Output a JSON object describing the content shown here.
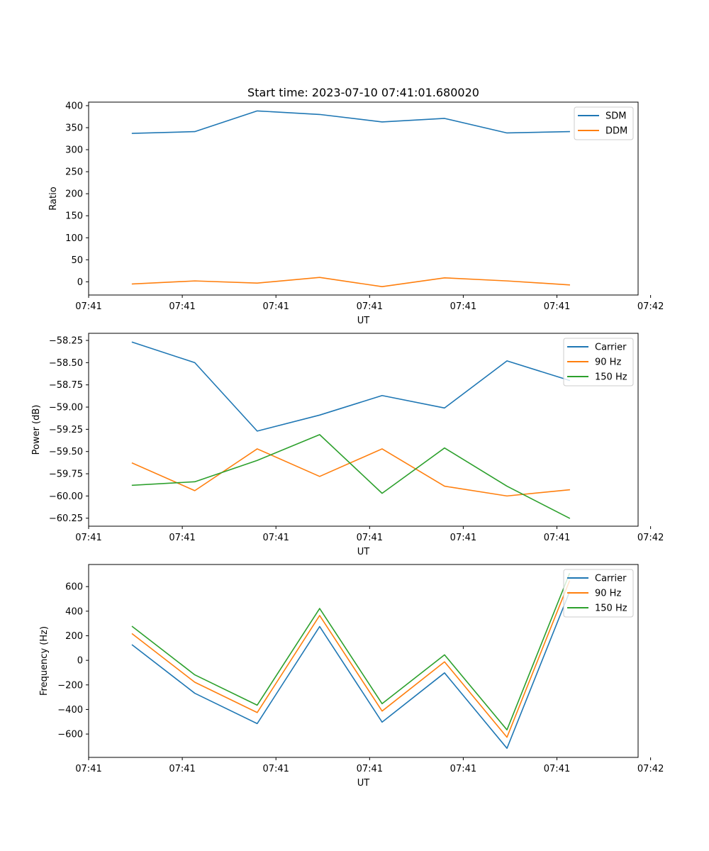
{
  "chart_data": [
    {
      "type": "line",
      "title": "Start time: 2023-07-10 07:41:01.680020",
      "xlabel": "UT",
      "ylabel": "Ratio",
      "x": [
        1,
        2,
        3,
        4,
        5,
        6,
        7,
        8
      ],
      "xlim": [
        0.3,
        9.1
      ],
      "xticks": [
        0.3,
        1.8,
        3.3,
        4.8,
        6.3,
        7.8,
        9.3
      ],
      "xtick_labels": [
        "07:41",
        "07:41",
        "07:41",
        "07:41",
        "07:41",
        "07:41",
        "07:42"
      ],
      "ylim": [
        -30,
        408
      ],
      "yticks": [
        0,
        50,
        100,
        150,
        200,
        250,
        300,
        350,
        400
      ],
      "ytick_labels": [
        "0",
        "50",
        "100",
        "150",
        "200",
        "250",
        "300",
        "350",
        "400"
      ],
      "legend_position": "top-right",
      "series": [
        {
          "name": "SDM",
          "color": "#1f77b4",
          "values": [
            337,
            341,
            388,
            380,
            363,
            371,
            338,
            341
          ]
        },
        {
          "name": "DDM",
          "color": "#ff7f0e",
          "values": [
            -5,
            2,
            -3,
            10,
            -11,
            9,
            2,
            -7
          ]
        }
      ]
    },
    {
      "type": "line",
      "title": "",
      "xlabel": "UT",
      "ylabel": "Power (dB)",
      "x": [
        1,
        2,
        3,
        4,
        5,
        6,
        7,
        8
      ],
      "xlim": [
        0.3,
        9.1
      ],
      "xticks": [
        0.3,
        1.8,
        3.3,
        4.8,
        6.3,
        7.8,
        9.3
      ],
      "xtick_labels": [
        "07:41",
        "07:41",
        "07:41",
        "07:41",
        "07:41",
        "07:41",
        "07:42"
      ],
      "ylim": [
        -60.34,
        -58.17
      ],
      "yticks": [
        -60.25,
        -60.0,
        -59.75,
        -59.5,
        -59.25,
        -59.0,
        -58.75,
        -58.5,
        -58.25
      ],
      "ytick_labels": [
        "−60.25",
        "−60.00",
        "−59.75",
        "−59.50",
        "−59.25",
        "−59.00",
        "−58.75",
        "−58.50",
        "−58.25"
      ],
      "legend_position": "top-right",
      "series": [
        {
          "name": "Carrier",
          "color": "#1f77b4",
          "values": [
            -58.27,
            -58.5,
            -59.27,
            -59.09,
            -58.87,
            -59.01,
            -58.48,
            -58.7
          ]
        },
        {
          "name": "90 Hz",
          "color": "#ff7f0e",
          "values": [
            -59.63,
            -59.94,
            -59.47,
            -59.78,
            -59.47,
            -59.89,
            -60.0,
            -59.93
          ]
        },
        {
          "name": "150 Hz",
          "color": "#2ca02c",
          "values": [
            -59.88,
            -59.84,
            -59.6,
            -59.31,
            -59.97,
            -59.46,
            -59.89,
            -60.25
          ]
        }
      ]
    },
    {
      "type": "line",
      "title": "",
      "xlabel": "UT",
      "ylabel": "Frequency (Hz)",
      "x": [
        1,
        2,
        3,
        4,
        5,
        6,
        7,
        8
      ],
      "xlim": [
        0.3,
        9.1
      ],
      "xticks": [
        0.3,
        1.8,
        3.3,
        4.8,
        6.3,
        7.8,
        9.3
      ],
      "xtick_labels": [
        "07:41",
        "07:41",
        "07:41",
        "07:41",
        "07:41",
        "07:41",
        "07:42"
      ],
      "ylim": [
        -790,
        780
      ],
      "yticks": [
        -600,
        -400,
        -200,
        0,
        200,
        400,
        600
      ],
      "ytick_labels": [
        "−600",
        "−400",
        "−200",
        "0",
        "200",
        "400",
        "600"
      ],
      "legend_position": "top-right",
      "series": [
        {
          "name": "Carrier",
          "color": "#1f77b4",
          "values": [
            125,
            -268,
            -515,
            275,
            -503,
            -102,
            -716,
            555
          ]
        },
        {
          "name": "90 Hz",
          "color": "#ff7f0e",
          "values": [
            215,
            -178,
            -425,
            365,
            -413,
            -12,
            -626,
            645
          ]
        },
        {
          "name": "150 Hz",
          "color": "#2ca02c",
          "values": [
            275,
            -118,
            -365,
            422,
            -353,
            45,
            -566,
            705
          ]
        }
      ]
    }
  ]
}
